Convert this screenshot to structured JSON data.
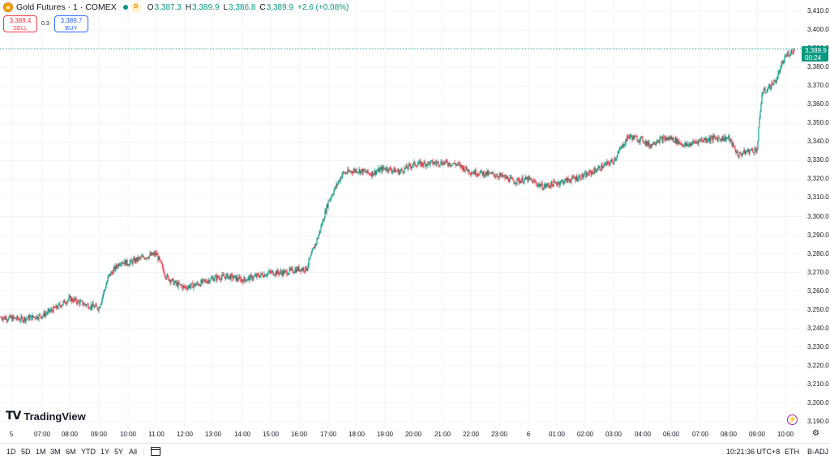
{
  "header": {
    "symbol": "Gold Futures · 1 · COMEX",
    "delay_badge": "D",
    "open_key": "O",
    "open": "3,387.3",
    "high_key": "H",
    "high": "3,389.9",
    "low_key": "L",
    "low": "3,386.8",
    "close_key": "C",
    "close": "3,389.9",
    "change": "+2.6 (+0.08%)"
  },
  "trade": {
    "sell_price": "3,389.4",
    "sell_label": "SELL",
    "spread": "0.3",
    "buy_price": "3,389.7",
    "buy_label": "BUY"
  },
  "last_price": {
    "price": "3,389.9",
    "countdown": "00:24"
  },
  "brand": "TradingView",
  "ranges": [
    "1D",
    "5D",
    "1M",
    "3M",
    "6M",
    "YTD",
    "1Y",
    "5Y",
    "All"
  ],
  "status": {
    "clock": "10:21:36 UTC+8",
    "session": "ETH",
    "adjust": "B-ADJ"
  },
  "colors": {
    "up": "#089981",
    "down": "#f23645",
    "grid": "#f0f3fa"
  },
  "chart_data": {
    "type": "candlestick",
    "interval": "1 minute",
    "ylim": [
      3185,
      3415
    ],
    "y_ticks": [
      "3,410.0",
      "3,400.0",
      "3,390.0",
      "3,380.0",
      "3,370.0",
      "3,360.0",
      "3,350.0",
      "3,340.0",
      "3,330.0",
      "3,320.0",
      "3,310.0",
      "3,300.0",
      "3,290.0",
      "3,280.0",
      "3,270.0",
      "3,260.0",
      "3,250.0",
      "3,240.0",
      "3,230.0",
      "3,220.0",
      "3,210.0",
      "3,200.0",
      "3,190.0"
    ],
    "x_labels": [
      "5",
      "07:00",
      "08:00",
      "09:00",
      "10:00",
      "11:00",
      "12:00",
      "13:00",
      "14:00",
      "15:00",
      "16:00",
      "17:00",
      "18:00",
      "19:00",
      "20:00",
      "21:00",
      "22:00",
      "23:00",
      "6",
      "01:00",
      "02:00",
      "03:00",
      "04:00",
      "06:00",
      "07:00",
      "08:00",
      "09:00",
      "10:00"
    ],
    "price_path": {
      "x": [
        "06:00",
        "06:30",
        "07:00",
        "07:30",
        "08:00",
        "08:30",
        "09:00",
        "09:20",
        "09:45",
        "10:00",
        "10:30",
        "11:00",
        "11:20",
        "11:40",
        "12:00",
        "12:30",
        "13:00",
        "13:30",
        "14:00",
        "14:30",
        "15:00",
        "15:30",
        "16:00",
        "16:15",
        "16:40",
        "17:00",
        "17:30",
        "18:00",
        "18:30",
        "19:00",
        "19:30",
        "20:00",
        "21:00",
        "21:30",
        "22:00",
        "22:30",
        "23:00",
        "23:30",
        "00:00",
        "00:30",
        "01:00",
        "01:30",
        "02:00",
        "02:30",
        "03:00",
        "03:30",
        "04:00",
        "04:30",
        "05:00",
        "06:00",
        "06:30",
        "07:00",
        "07:30",
        "08:00",
        "08:20",
        "08:40",
        "09:00",
        "09:10",
        "09:20",
        "09:40",
        "10:00",
        "10:20"
      ],
      "close": [
        3246,
        3245,
        3247,
        3251,
        3256,
        3253,
        3251,
        3268,
        3276,
        3275,
        3278,
        3280,
        3268,
        3264,
        3262,
        3264,
        3267,
        3268,
        3266,
        3268,
        3270,
        3270,
        3272,
        3272,
        3290,
        3308,
        3323,
        3325,
        3323,
        3326,
        3324,
        3328,
        3329,
        3328,
        3324,
        3323,
        3322,
        3319,
        3320,
        3316,
        3318,
        3320,
        3322,
        3326,
        3330,
        3343,
        3341,
        3338,
        3341,
        3342,
        3338,
        3341,
        3342,
        3342,
        3333,
        3335,
        3336,
        3366,
        3368,
        3373,
        3386,
        3389.9
      ]
    },
    "last_close": 3389.9
  }
}
